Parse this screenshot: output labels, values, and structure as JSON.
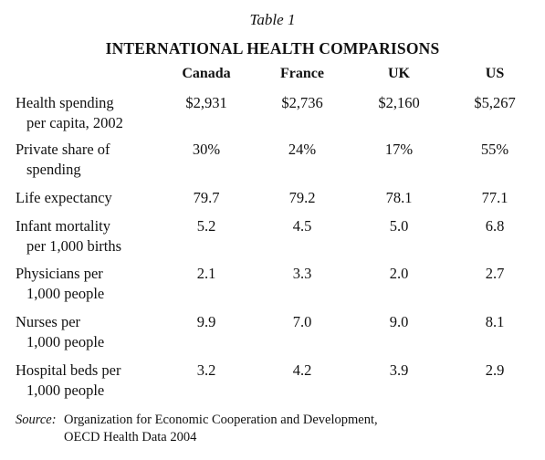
{
  "caption": "Table 1",
  "title": "INTERNATIONAL HEALTH COMPARISONS",
  "columns": [
    "Canada",
    "France",
    "UK",
    "US"
  ],
  "rows": [
    {
      "label_line1": "Health spending",
      "label_line2": "per capita, 2002",
      "values": [
        "$2,931",
        "$2,736",
        "$2,160",
        "$5,267"
      ]
    },
    {
      "label_line1": "Private share of",
      "label_line2": "spending",
      "values": [
        "30%",
        "24%",
        "17%",
        "55%"
      ]
    },
    {
      "label_line1": "Life expectancy",
      "label_line2": "",
      "values": [
        "79.7",
        "79.2",
        "78.1",
        "77.1"
      ]
    },
    {
      "label_line1": "Infant mortality",
      "label_line2": "per 1,000 births",
      "values": [
        "5.2",
        "4.5",
        "5.0",
        "6.8"
      ]
    },
    {
      "label_line1": "Physicians per",
      "label_line2": "1,000 people",
      "values": [
        "2.1",
        "3.3",
        "2.0",
        "2.7"
      ]
    },
    {
      "label_line1": "Nurses per",
      "label_line2": "1,000 people",
      "values": [
        "9.9",
        "7.0",
        "9.0",
        "8.1"
      ]
    },
    {
      "label_line1": "Hospital beds per",
      "label_line2": "1,000 people",
      "values": [
        "3.2",
        "4.2",
        "3.9",
        "2.9"
      ]
    }
  ],
  "source": {
    "label": "Source",
    "line1": "Organization for Economic Cooperation and Development,",
    "line2": "OECD Health Data 2004"
  }
}
